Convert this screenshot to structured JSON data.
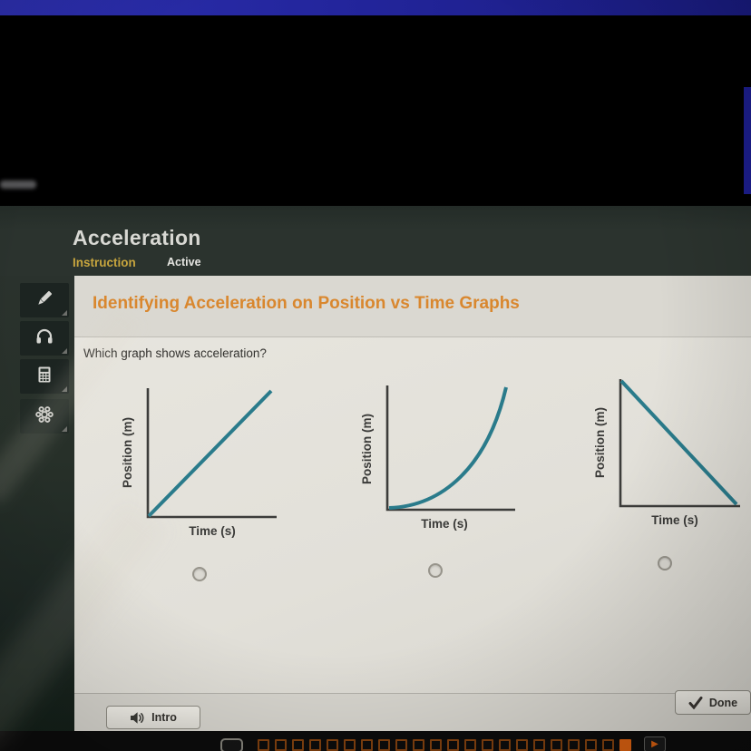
{
  "header": {
    "title": "Acceleration",
    "tabs": [
      {
        "label": "Instruction",
        "state": "active",
        "color": "#c7a53e"
      },
      {
        "label": "Active",
        "state": "inactive",
        "color": "#e6e6e2"
      }
    ]
  },
  "sidebar": {
    "items": [
      {
        "icon": "pencil-icon"
      },
      {
        "icon": "headphones-icon"
      },
      {
        "icon": "calculator-icon"
      },
      {
        "icon": "atom-icon"
      }
    ]
  },
  "content": {
    "heading": "Identifying Acceleration on Position vs Time Graphs",
    "question": "Which graph shows acceleration?"
  },
  "chart_data": [
    {
      "type": "line",
      "id": "graph-a",
      "xlabel": "Time (s)",
      "ylabel": "Position (m)",
      "shape": "straight line increasing from origin (constant velocity)",
      "x": [
        0,
        1,
        2,
        3,
        4
      ],
      "y": [
        0,
        1,
        2,
        3,
        4
      ],
      "line_color": "#2a7b8b",
      "axis_ticks": "none (qualitative sketch)"
    },
    {
      "type": "line",
      "id": "graph-b",
      "xlabel": "Time (s)",
      "ylabel": "Position (m)",
      "shape": "concave-up curve from origin (acceleration)",
      "x": [
        0,
        1,
        2,
        3,
        4
      ],
      "y": [
        0,
        0.06,
        0.25,
        0.56,
        1
      ],
      "line_color": "#2a7b8b",
      "axis_ticks": "none (qualitative sketch)"
    },
    {
      "type": "line",
      "id": "graph-c",
      "xlabel": "Time (s)",
      "ylabel": "Position (m)",
      "shape": "straight line decreasing to zero (constant negative velocity)",
      "x": [
        0,
        1,
        2,
        3,
        4
      ],
      "y": [
        4,
        3,
        2,
        1,
        0
      ],
      "line_color": "#2a7b8b",
      "axis_ticks": "none (qualitative sketch)"
    }
  ],
  "choices": [
    {
      "value": "graph-a",
      "selected": false
    },
    {
      "value": "graph-b",
      "selected": false
    },
    {
      "value": "graph-c",
      "selected": false
    }
  ],
  "footer": {
    "intro_button": "Intro",
    "done_button": "Done"
  },
  "progress_bar": {
    "segments_total": 22,
    "current_segment": 22,
    "play_icon": "play-arrow"
  },
  "colors": {
    "accent_orange": "#d9872e",
    "tab_active_gold": "#c7a53e",
    "header_bg": "#2b332e",
    "panel_bg": "#e3e1da",
    "graph_line_teal": "#2a7b8b",
    "progress_outline": "#80400f",
    "progress_filled": "#d96010",
    "window_edge_blue": "#23259c"
  }
}
